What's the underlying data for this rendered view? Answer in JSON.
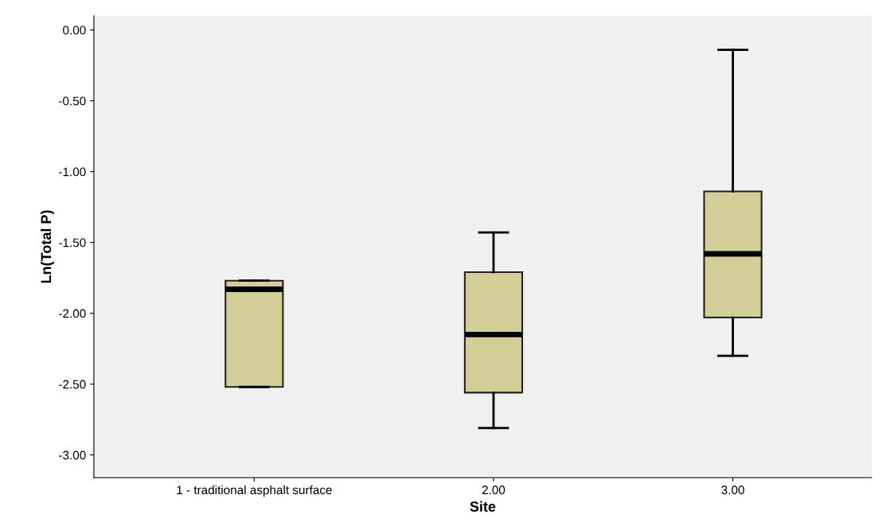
{
  "chart_data": {
    "type": "box",
    "xlabel": "Site",
    "ylabel": "Ln(Total P)",
    "categories": [
      "1 - traditional asphalt surface",
      "2.00",
      "3.00"
    ],
    "boxes": [
      {
        "low": -2.52,
        "q1": -2.52,
        "median": -1.83,
        "q3": -1.77,
        "high": -1.77
      },
      {
        "low": -2.81,
        "q1": -2.56,
        "median": -2.15,
        "q3": -1.71,
        "high": -1.43
      },
      {
        "low": -2.3,
        "q1": -2.03,
        "median": -1.58,
        "q3": -1.14,
        "high": -0.14
      }
    ],
    "color": "#d3ce97",
    "ylim": [
      -3.16,
      0.1
    ],
    "yticks": [
      {
        "value": 0,
        "label": "0.00"
      },
      {
        "value": -0.5,
        "label": "-0.50"
      },
      {
        "value": -1,
        "label": "-1.00"
      },
      {
        "value": -1.5,
        "label": "-1.50"
      },
      {
        "value": -2,
        "label": "-2.00"
      },
      {
        "value": -2.5,
        "label": "-2.50"
      },
      {
        "value": -3,
        "label": "-3.00"
      }
    ],
    "grid": false
  }
}
